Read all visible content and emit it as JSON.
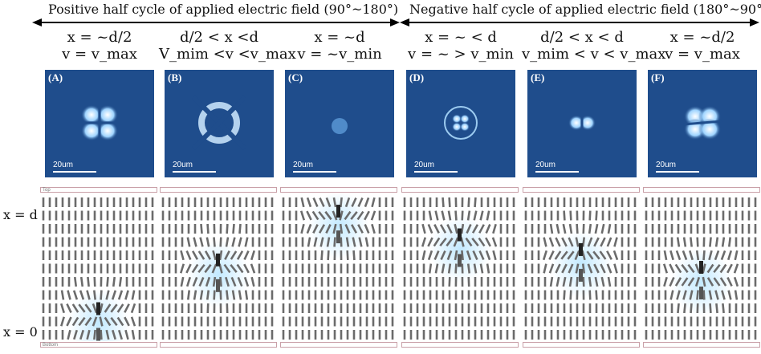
{
  "figure": {
    "header_left": "Positive half cycle of applied electric field (90°~180°)",
    "header_right": "Negative half cycle of applied electric field (180°~90°)",
    "y_axis": {
      "top": "x = d",
      "bottom": "x = 0"
    },
    "plates": {
      "top": "Top",
      "bottom": "Bottom"
    },
    "scale_text": "20um",
    "panels": [
      {
        "label": "(A)",
        "cond_x": "x = ~d/2",
        "cond_v": "v = v_max",
        "pattern": "four-lobe",
        "defect_level": 0.22
      },
      {
        "label": "(B)",
        "cond_x": "d/2 < x <d",
        "cond_v": "V_mim <v  <v_max",
        "pattern": "ring-lobes",
        "defect_level": 0.55
      },
      {
        "label": "(C)",
        "cond_x": "x = ~d",
        "cond_v": "v = ~v_min",
        "pattern": "dot",
        "defect_level": 0.88
      },
      {
        "label": "(D)",
        "cond_x": "x = ~ < d",
        "cond_v": "v = ~ > v_min",
        "pattern": "small-ring",
        "defect_level": 0.72
      },
      {
        "label": "(E)",
        "cond_x": "d/2 < x < d",
        "cond_v": "v_mim < v < v_max",
        "pattern": "bowtie",
        "defect_level": 0.62
      },
      {
        "label": "(F)",
        "cond_x": "x = ~d/2",
        "cond_v": "v = v_max",
        "pattern": "four-lobe-faint",
        "defect_level": 0.5
      }
    ],
    "colors": {
      "micrograph_bg": "#1f4d8c",
      "glow": "#bfe8ff",
      "rod": "#6b6b6b"
    }
  }
}
